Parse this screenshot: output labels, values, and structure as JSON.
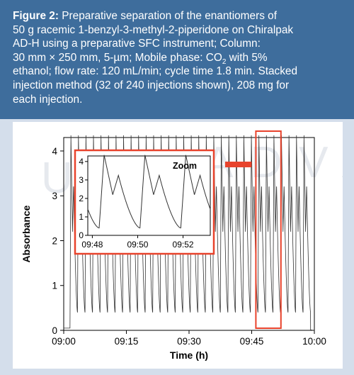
{
  "caption": {
    "label": "Figure 2:",
    "line1": "Preparative separation of the enantiomers of",
    "line2": "50 g racemic 1-benzyl-3-methyl-2-piperidone on Chiralpak",
    "line3": "AD-H using a preparative SFC instrument; Column:",
    "line4": "30 mm × 250 mm, 5-µm; Mobile phase: CO",
    "line4_sub": "2",
    "line4_end": " with 5%",
    "line5": "ethanol; flow rate: 120 mL/min; cycle time 1.8 min. Stacked",
    "line6": "injection method (32 of 240 injections shown), 208 mg for",
    "line7": "each injection."
  },
  "watermark": {
    "top": "ADVA",
    "bottom": "UEM"
  },
  "colors": {
    "caption_bg": "#3e6d9c",
    "highlight": "#e8432c",
    "trace": "#333333",
    "page_bg": "#d4deeb"
  },
  "chart_data": {
    "type": "line",
    "xlabel": "Time (h)",
    "ylabel": "Absorbance",
    "x_ticks": [
      "09:00",
      "09:15",
      "09:30",
      "09:45",
      "10:00"
    ],
    "x_tick_minutes": [
      0,
      15,
      30,
      45,
      60
    ],
    "xlim_minutes": [
      0,
      60
    ],
    "y_ticks": [
      "0",
      "1",
      "2",
      "3",
      "4"
    ],
    "ylim": [
      0,
      4.3
    ],
    "series": [
      {
        "cycle_minutes": 1.8,
        "first_injection_minute": 1.5,
        "injections_shown": 32,
        "peak1_absorbance": 4.35,
        "peak2_absorbance": 3.25,
        "trough_absorbance": 0.4,
        "baseline_before_injection": 0.05
      }
    ],
    "highlight_x_range_minutes": [
      46.0,
      52.0
    ],
    "inset": {
      "title": "Zoom",
      "x_ticks": [
        "09:48",
        "09:50",
        "09:52"
      ],
      "x_tick_minutes": [
        48,
        50,
        52
      ],
      "xlim_minutes": [
        47.8,
        53.2
      ],
      "y_ticks": [
        "0",
        "1",
        "2",
        "3",
        "4"
      ],
      "ylim": [
        0,
        4.3
      ]
    }
  }
}
